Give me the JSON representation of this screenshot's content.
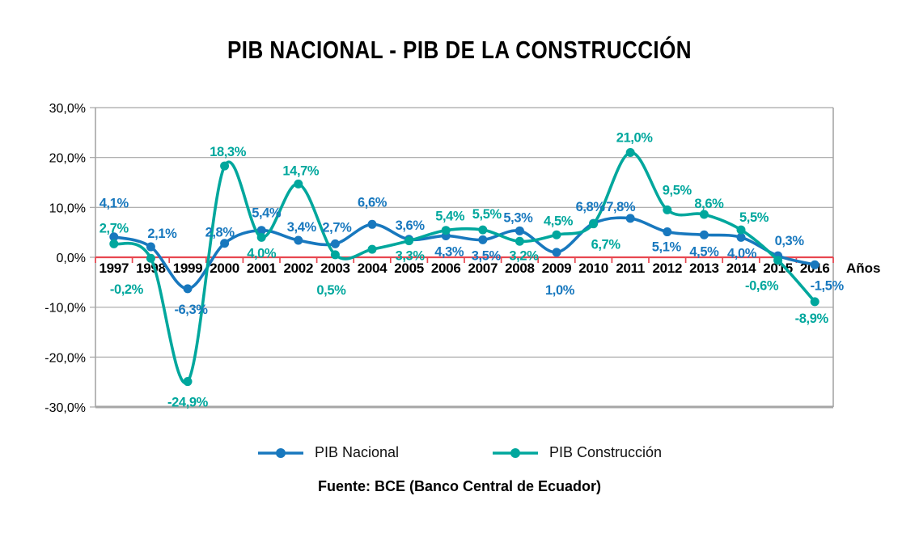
{
  "title": "PIB NACIONAL - PIB DE LA CONSTRUCCIÓN",
  "source": "Fuente: BCE (Banco Central de Ecuador)",
  "x_axis_label": "Años",
  "legend": {
    "items": [
      {
        "label": "PIB Nacional",
        "color": "#1878BE"
      },
      {
        "label": "PIB Construcción",
        "color": "#00A79D"
      }
    ]
  },
  "colors": {
    "grid": "#A6A6A6",
    "border": "#A6A6A6",
    "zero_line": "#E84750",
    "axis_text": "#000000",
    "background": "#FFFFFF"
  },
  "chart_data": {
    "type": "line",
    "title": "PIB NACIONAL - PIB DE LA CONSTRUCCIÓN",
    "xlabel": "Años",
    "ylabel": "",
    "ylim": [
      -30,
      30
    ],
    "grid": "horizontal",
    "legend_position": "bottom",
    "line_style": "smooth",
    "categories": [
      "1997",
      "1998",
      "1999",
      "2000",
      "2001",
      "2002",
      "2003",
      "2004",
      "2005",
      "2006",
      "2007",
      "2008",
      "2009",
      "2010",
      "2011",
      "2012",
      "2013",
      "2014",
      "2015",
      "2016"
    ],
    "y_ticks": {
      "labels": [
        "30,0%",
        "20,0%",
        "10,0%",
        "0,0%",
        "-10,0%",
        "-20,0%",
        "-30,0%"
      ],
      "values": [
        30,
        20,
        10,
        0,
        -10,
        -20,
        -30
      ]
    },
    "series": [
      {
        "name": "PIB Nacional",
        "color": "#1878BE",
        "values": [
          4.1,
          2.1,
          -6.3,
          2.8,
          5.4,
          3.4,
          2.7,
          6.6,
          3.6,
          4.3,
          3.5,
          5.3,
          1.0,
          6.8,
          7.8,
          5.1,
          4.5,
          4.0,
          0.3,
          -1.5
        ],
        "labels": [
          "4,1%",
          "2,1%",
          "-6,3%",
          "2,8%",
          "5,4%",
          "3,4%",
          "2,7%",
          "6,6%",
          "3,6%",
          "4,3%",
          "3,5%",
          "5,3%",
          "1,0%",
          "6,8%",
          "7,8%",
          "5,1%",
          "4,5%",
          "4,0%",
          "0,3%",
          "-1,5%"
        ],
        "label_offsets": [
          [
            0,
            -42
          ],
          [
            14,
            -17
          ],
          [
            4,
            25
          ],
          [
            -6,
            -14
          ],
          [
            6,
            -22
          ],
          [
            4,
            -17
          ],
          [
            2,
            -21
          ],
          [
            0,
            -28
          ],
          [
            1,
            -18
          ],
          [
            4,
            19
          ],
          [
            4,
            19
          ],
          [
            -2,
            -17
          ],
          [
            4,
            46
          ],
          [
            -4,
            -21
          ],
          [
            -12,
            -15
          ],
          [
            -1,
            18
          ],
          [
            0,
            20
          ],
          [
            1,
            19
          ],
          [
            14,
            -19
          ],
          [
            15,
            25
          ]
        ]
      },
      {
        "name": "PIB Construcción",
        "color": "#00A79D",
        "values": [
          2.7,
          -0.2,
          -24.9,
          18.3,
          4.0,
          14.7,
          0.5,
          1.6,
          3.3,
          5.4,
          5.5,
          3.2,
          4.5,
          6.7,
          21.0,
          9.5,
          8.6,
          5.5,
          -0.6,
          -8.9
        ],
        "labels": [
          "2,7%",
          "-0,2%",
          "-24,9%",
          "18,3%",
          "4,0%",
          "14,7%",
          "0,5%",
          "",
          "3,3%",
          "5,4%",
          "5,5%",
          "3,2%",
          "4,5%",
          "6,7%",
          "21,0%",
          "9,5%",
          "8,6%",
          "5,5%",
          "-0,6%",
          "-8,9%"
        ],
        "label_offsets": [
          [
            0,
            -20
          ],
          [
            -30,
            38
          ],
          [
            0,
            25
          ],
          [
            4,
            -18
          ],
          [
            0,
            19
          ],
          [
            3,
            -17
          ],
          [
            -5,
            43
          ],
          [
            0,
            0
          ],
          [
            1,
            18
          ],
          [
            5,
            -18
          ],
          [
            5,
            -20
          ],
          [
            5,
            17
          ],
          [
            2,
            -18
          ],
          [
            15,
            25
          ],
          [
            5,
            -19
          ],
          [
            12,
            -25
          ],
          [
            6,
            -14
          ],
          [
            16,
            -16
          ],
          [
            -20,
            31
          ],
          [
            -4,
            20
          ]
        ]
      }
    ]
  }
}
